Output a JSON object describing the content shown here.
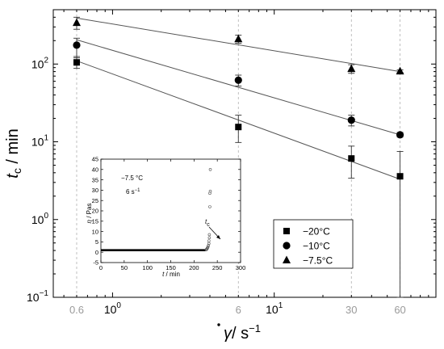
{
  "chart_data": {
    "type": "scatter",
    "x_scale": "log",
    "y_scale": "log",
    "xlim": [
      0.43,
      100
    ],
    "ylim": [
      0.1,
      500
    ],
    "y_ticks": [
      {
        "value": 0.1,
        "base": "10",
        "exp": "−1"
      },
      {
        "value": 1,
        "base": "10",
        "exp": "0"
      },
      {
        "value": 10,
        "base": "10",
        "exp": "1"
      },
      {
        "value": 100,
        "base": "10",
        "exp": "2"
      }
    ],
    "x_ticks": [
      {
        "value": 1,
        "base": "10",
        "exp": "0"
      },
      {
        "value": 10,
        "base": "10",
        "exp": "1"
      }
    ],
    "x_ref_lines": [
      {
        "value": 0.6,
        "label": "0.6"
      },
      {
        "value": 6,
        "label": "6"
      },
      {
        "value": 30,
        "label": "30"
      },
      {
        "value": 60,
        "label": "60"
      }
    ],
    "ylabel": {
      "symbol": "t",
      "sub": "c",
      "rest": " / min"
    },
    "xlabel": {
      "symbol": "γ",
      "rest": "/ s",
      "sup": "−1"
    },
    "series": [
      {
        "name": "−20°C",
        "marker": "square",
        "x": [
          0.6,
          6,
          30,
          60
        ],
        "y": [
          105,
          15.5,
          6.1,
          3.6
        ],
        "err_low": [
          88,
          9.8,
          3.4,
          0.1
        ],
        "err_high": [
          125,
          22,
          8.8,
          7.5
        ],
        "fit": {
          "x": [
            0.6,
            60
          ],
          "y": [
            110,
            3.3
          ]
        }
      },
      {
        "name": "−10°C",
        "marker": "circle",
        "x": [
          0.6,
          6,
          30,
          60
        ],
        "y": [
          175,
          62,
          19,
          12.3
        ],
        "err_low": [
          120,
          52,
          16,
          11.5
        ],
        "err_high": [
          215,
          72,
          22,
          13.2
        ],
        "fit": {
          "x": [
            0.6,
            60
          ],
          "y": [
            205,
            12.3
          ]
        }
      },
      {
        "name": "−7.5°C",
        "marker": "triangle",
        "x": [
          0.6,
          6,
          30,
          60
        ],
        "y": [
          340,
          210,
          87,
          81
        ],
        "err_low": [
          280,
          185,
          76,
          78
        ],
        "err_high": [
          400,
          235,
          98,
          84
        ],
        "fit": {
          "x": [
            0.6,
            60
          ],
          "y": [
            390,
            80
          ]
        }
      }
    ],
    "inset": {
      "xlim": [
        0,
        300
      ],
      "ylim": [
        -5,
        45
      ],
      "x_ticks": [
        0,
        50,
        100,
        150,
        200,
        250,
        300
      ],
      "y_ticks": [
        -5,
        0,
        5,
        10,
        15,
        20,
        25,
        30,
        35,
        40,
        45
      ],
      "ylabel": {
        "symbol": "η",
        "rest": " / Pas"
      },
      "xlabel": {
        "symbol": "t",
        "rest": " / min"
      },
      "annotation_temp": "−7.5 °C",
      "annotation_rate": "6 s",
      "annotation_rate_sup": "−1",
      "tc_label": {
        "symbol": "t",
        "sub": "c"
      },
      "flat_level": 1.0,
      "flat_end": 225,
      "upturn_points": [
        {
          "t": 226,
          "eta": 1.2
        },
        {
          "t": 227,
          "eta": 1.4
        },
        {
          "t": 228,
          "eta": 1.7
        },
        {
          "t": 229,
          "eta": 2.1
        },
        {
          "t": 230,
          "eta": 2.6
        },
        {
          "t": 231,
          "eta": 3.3
        },
        {
          "t": 232,
          "eta": 4.2
        },
        {
          "t": 232,
          "eta": 5.5
        },
        {
          "t": 233,
          "eta": 7.0
        },
        {
          "t": 233,
          "eta": 8.5
        },
        {
          "t": 234,
          "eta": 22
        },
        {
          "t": 234,
          "eta": 28.5
        },
        {
          "t": 235,
          "eta": 29.5
        },
        {
          "t": 235,
          "eta": 40
        }
      ]
    }
  }
}
